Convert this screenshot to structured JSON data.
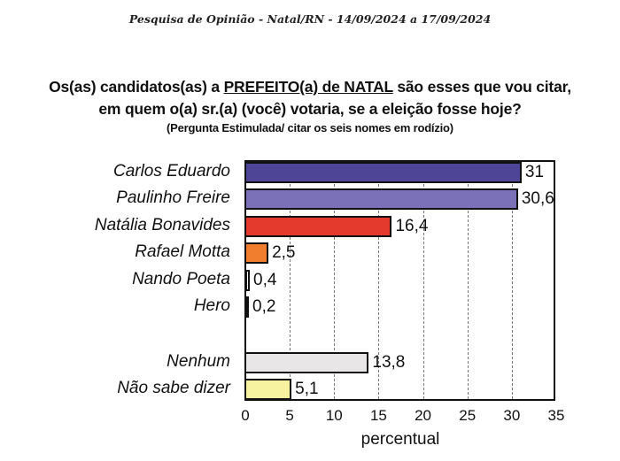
{
  "header": {
    "text": "Pesquisa de Opinião  -  Natal/RN  - 14/09/2024  a  17/09/2024"
  },
  "question": {
    "line1_pre": "Os(as) candidatos(as) a ",
    "line1_underlined": "PREFEITO(a) de NATAL",
    "line1_post": " são esses que vou citar,",
    "line2": "em quem o(a) sr.(a) (você) votaria, se a eleição fosse hoje?",
    "line3": "(Pergunta Estimulada/ citar os seis nomes em rodízio)"
  },
  "chart_data": {
    "type": "bar",
    "orientation": "horizontal",
    "title": "Os(as) candidatos(as) a PREFEITO(a) de NATAL são esses que vou citar, em quem o(a) sr.(a) (você) votaria, se a eleição fosse hoje?",
    "subtitle": "(Pergunta Estimulada/ citar os seis nomes em rodízio)",
    "header": "Pesquisa de Opinião - Natal/RN - 14/09/2024 a 17/09/2024",
    "categories": [
      "Carlos Eduardo",
      "Paulinho Freire",
      "Natália Bonavides",
      "Rafael Motta",
      "Nando Poeta",
      "Hero",
      "Nenhum",
      "Não sabe dizer"
    ],
    "values": [
      31,
      30.6,
      16.4,
      2.5,
      0.4,
      0.2,
      13.8,
      5.1
    ],
    "value_labels": [
      "31",
      "30,6",
      "16,4",
      "2,5",
      "0,4",
      "0,2",
      "13,8",
      "5,1"
    ],
    "colors": [
      "#4e4596",
      "#7b71b8",
      "#e43a2e",
      "#f07e2e",
      "#ffffff",
      "#111111",
      "#e8e6e6",
      "#f6f2a0"
    ],
    "xlabel": "percentual",
    "ylabel": "",
    "xlim": [
      0,
      35
    ],
    "xticks": [
      "0",
      "5",
      "10",
      "15",
      "20",
      "25",
      "30",
      "35"
    ],
    "grid": "vertical dashed",
    "legend": "none"
  }
}
